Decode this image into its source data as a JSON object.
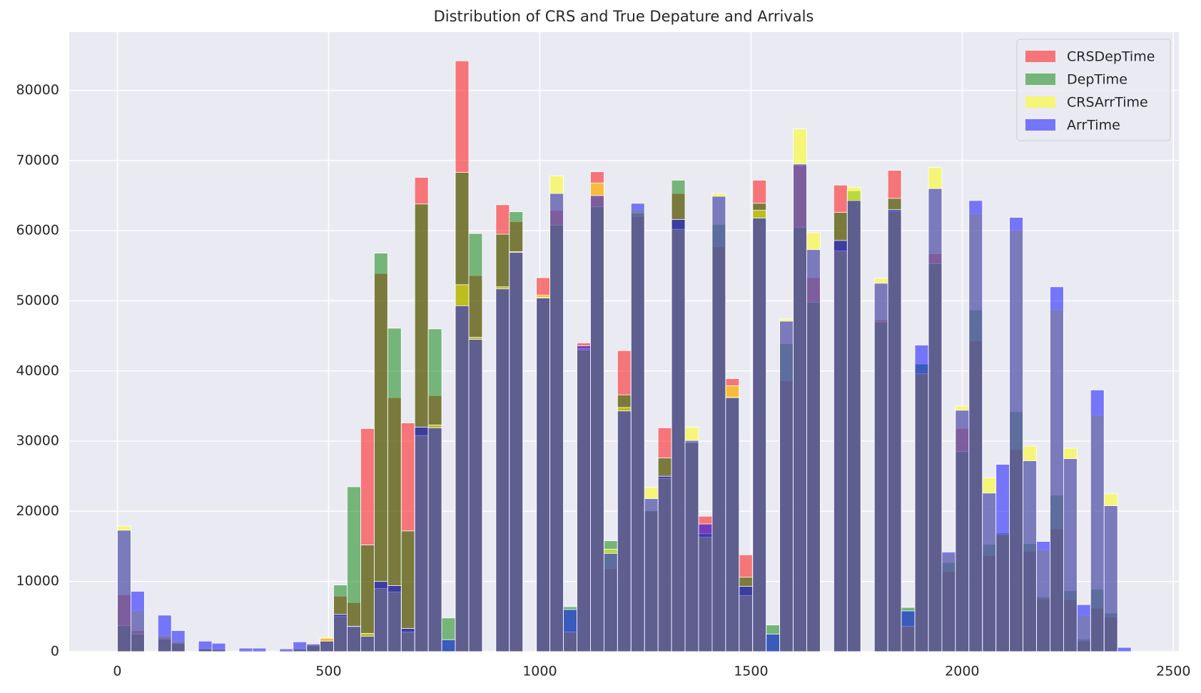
{
  "chart_data": {
    "type": "histogram",
    "title": "Distribution of CRS and True Depature and Arrivals",
    "bins": [
      0,
      32,
      64,
      96,
      128,
      160,
      192,
      224,
      256,
      288,
      320,
      352,
      384,
      416,
      448,
      480,
      512,
      544,
      576,
      608,
      640,
      672,
      704,
      736,
      768,
      800,
      832,
      864,
      896,
      928,
      960,
      992,
      1024,
      1056,
      1088,
      1120,
      1152,
      1184,
      1216,
      1248,
      1280,
      1312,
      1344,
      1376,
      1408,
      1440,
      1472,
      1504,
      1536,
      1568,
      1600,
      1632,
      1664,
      1696,
      1728,
      1760,
      1792,
      1824,
      1856,
      1888,
      1920,
      1952,
      1984,
      2016,
      2048,
      2080,
      2112,
      2144,
      2176,
      2208,
      2240,
      2272,
      2304,
      2336,
      2368,
      2400
    ],
    "series": [
      {
        "name": "CRSDepTime",
        "color": "#ff0000",
        "values": [
          8100,
          3000,
          0,
          2000,
          1300,
          0,
          500,
          300,
          0,
          150,
          150,
          0,
          150,
          300,
          800,
          1900,
          7900,
          7000,
          31800,
          53900,
          36200,
          32600,
          67600,
          36500,
          0,
          84200,
          53600,
          0,
          63700,
          61300,
          0,
          53300,
          62900,
          2800,
          44000,
          68400,
          11800,
          42900,
          62000,
          20000,
          31900,
          65300,
          29700,
          19300,
          57700,
          38900,
          13800,
          67200,
          0,
          38600,
          69300,
          53300,
          0,
          66500,
          64500,
          0,
          47300,
          68600,
          3700,
          39700,
          56700,
          11400,
          31800,
          44300,
          13700,
          16800,
          28800,
          14300,
          7500,
          17500,
          7400,
          1500,
          6200,
          4900,
          0
        ]
      },
      {
        "name": "DepTime",
        "color": "#008000",
        "values": [
          3700,
          2500,
          0,
          1800,
          1200,
          0,
          400,
          300,
          0,
          150,
          150,
          0,
          150,
          400,
          900,
          1500,
          9500,
          23500,
          15200,
          56800,
          46100,
          17200,
          63800,
          46000,
          4800,
          68300,
          59600,
          0,
          59500,
          62700,
          0,
          50500,
          60800,
          6400,
          43000,
          63400,
          15800,
          36600,
          62500,
          20100,
          27600,
          67200,
          29800,
          16800,
          60900,
          36300,
          10600,
          63900,
          3800,
          43900,
          60500,
          49800,
          0,
          62600,
          65700,
          0,
          47000,
          64600,
          6300,
          41000,
          55300,
          12700,
          28500,
          48700,
          15300,
          16900,
          34200,
          15400,
          7800,
          22300,
          8700,
          1800,
          8900,
          5500,
          0
        ]
      },
      {
        "name": "CRSArrTime",
        "color": "#ffff00",
        "values": [
          17900,
          5800,
          0,
          2300,
          1500,
          0,
          400,
          300,
          0,
          150,
          150,
          0,
          150,
          500,
          1000,
          2000,
          5000,
          3500,
          2600,
          9000,
          8500,
          2800,
          30800,
          32300,
          0,
          52300,
          44800,
          0,
          52000,
          57000,
          0,
          50800,
          67800,
          2800,
          43200,
          66800,
          14600,
          34800,
          63000,
          23400,
          24700,
          60200,
          32000,
          16300,
          65300,
          37900,
          8000,
          62900,
          0,
          47400,
          74500,
          59700,
          0,
          57100,
          66200,
          0,
          53200,
          62800,
          3600,
          39600,
          69000,
          14000,
          35000,
          62400,
          24800,
          16700,
          60100,
          29300,
          14500,
          48700,
          29000,
          5100,
          33700,
          22500,
          0
        ]
      },
      {
        "name": "ArrTime",
        "color": "#0000ff",
        "values": [
          17300,
          8600,
          0,
          5200,
          3000,
          0,
          1500,
          1200,
          0,
          500,
          500,
          0,
          400,
          1400,
          1100,
          1500,
          5300,
          3600,
          2200,
          10000,
          9400,
          3300,
          32000,
          31900,
          1700,
          49300,
          44500,
          0,
          51700,
          56900,
          0,
          50400,
          65300,
          6000,
          43600,
          65000,
          14000,
          34300,
          63900,
          21800,
          25000,
          61600,
          30100,
          18200,
          64900,
          36200,
          9300,
          61800,
          2500,
          47100,
          69500,
          57300,
          0,
          58600,
          64300,
          0,
          52500,
          63000,
          5800,
          43700,
          66000,
          14200,
          34400,
          64300,
          22600,
          26700,
          61900,
          27200,
          15700,
          52000,
          27500,
          6700,
          37300,
          20800,
          600
        ]
      }
    ],
    "xlim": [
      -114,
      2513
    ],
    "ylim": [
      0,
      88300
    ],
    "xticks": [
      0,
      500,
      1000,
      1500,
      2000,
      2500
    ],
    "yticks": [
      0,
      10000,
      20000,
      30000,
      40000,
      50000,
      60000,
      70000,
      80000
    ],
    "grid": true,
    "legend": "upper right"
  }
}
